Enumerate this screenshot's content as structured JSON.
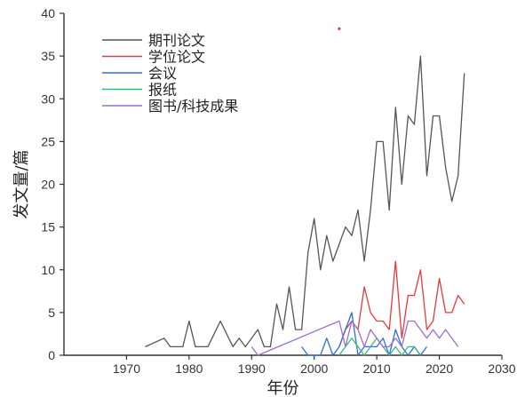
{
  "chart_data": {
    "type": "line",
    "xlabel": "年份",
    "ylabel": "发文量/篇",
    "xlim": [
      1960,
      2030
    ],
    "ylim": [
      0,
      40
    ],
    "xticks": [
      1970,
      1980,
      1990,
      2000,
      2010,
      2020,
      2030
    ],
    "yticks": [
      0,
      5,
      10,
      15,
      20,
      25,
      30,
      35,
      40
    ],
    "legend_position": "top-left",
    "series": [
      {
        "name": "期刊论文",
        "color": "#555555",
        "x": [
          1973,
          1976,
          1977,
          1979,
          1980,
          1981,
          1983,
          1985,
          1987,
          1988,
          1989,
          1990,
          1991,
          1992,
          1993,
          1994,
          1995,
          1996,
          1997,
          1998,
          1999,
          2000,
          2001,
          2002,
          2003,
          2004,
          2005,
          2006,
          2007,
          2008,
          2009,
          2010,
          2011,
          2012,
          2013,
          2014,
          2015,
          2016,
          2017,
          2018,
          2019,
          2020,
          2021,
          2022,
          2023,
          2024
        ],
        "y": [
          1,
          2,
          1,
          1,
          4,
          1,
          1,
          4,
          1,
          2,
          1,
          2,
          3,
          1,
          1,
          6,
          3,
          8,
          3,
          3,
          12,
          16,
          10,
          14,
          11,
          13,
          15,
          14,
          17,
          11,
          17,
          25,
          25,
          17,
          29,
          20,
          28,
          27,
          35,
          21,
          28,
          28,
          22,
          18,
          21,
          33
        ]
      },
      {
        "name": "学位论文",
        "color": "#e8383d",
        "x": [
          2004,
          2005,
          2006,
          2007,
          2008,
          2009,
          2010,
          2011,
          2012,
          2013,
          2014,
          2015,
          2016,
          2017,
          2018,
          2019,
          2020,
          2021,
          2022,
          2023,
          2024
        ],
        "y": [
          1,
          3,
          4,
          3,
          8,
          5,
          4,
          4,
          3,
          11,
          2,
          7,
          7,
          10,
          3,
          4,
          9,
          5,
          5,
          7,
          6
        ]
      },
      {
        "name": "会议",
        "color": "#2f6fd6",
        "x": [
          1998,
          1999,
          2001,
          2002,
          2003,
          2004,
          2005,
          2006,
          2007,
          2008,
          2009,
          2010,
          2011,
          2012,
          2013,
          2014,
          2015,
          2016,
          2017,
          2018
        ],
        "y": [
          1,
          0,
          0,
          2,
          0,
          1,
          3,
          5,
          0,
          1,
          1,
          1,
          2,
          0,
          3,
          1,
          0,
          1,
          0,
          1
        ]
      },
      {
        "name": "报纸",
        "color": "#3cb87a",
        "x": [
          2004,
          2005,
          2006,
          2007,
          2008,
          2009,
          2010,
          2011,
          2012,
          2013,
          2014,
          2015,
          2016,
          2017
        ],
        "y": [
          0,
          1,
          2,
          1,
          0,
          1,
          2,
          1,
          0,
          1,
          0,
          1,
          1,
          0
        ]
      },
      {
        "name": "图书/科技成果",
        "color": "#9b6fd0",
        "x": [
          1990,
          1991,
          2004,
          2005,
          2006,
          2007,
          2008,
          2009,
          2010,
          2011,
          2012,
          2013,
          2014,
          2015,
          2016,
          2017,
          2018,
          2019,
          2020,
          2021,
          2022,
          2023
        ],
        "y": [
          1,
          0,
          4,
          1,
          4,
          3,
          1,
          3,
          2,
          1,
          1,
          2,
          1,
          4,
          4,
          3,
          2,
          3,
          2,
          3,
          2,
          1
        ]
      }
    ],
    "annotations": [
      {
        "x": 2004,
        "y": 38.2,
        "color": "#e8383d",
        "kind": "point"
      }
    ]
  }
}
